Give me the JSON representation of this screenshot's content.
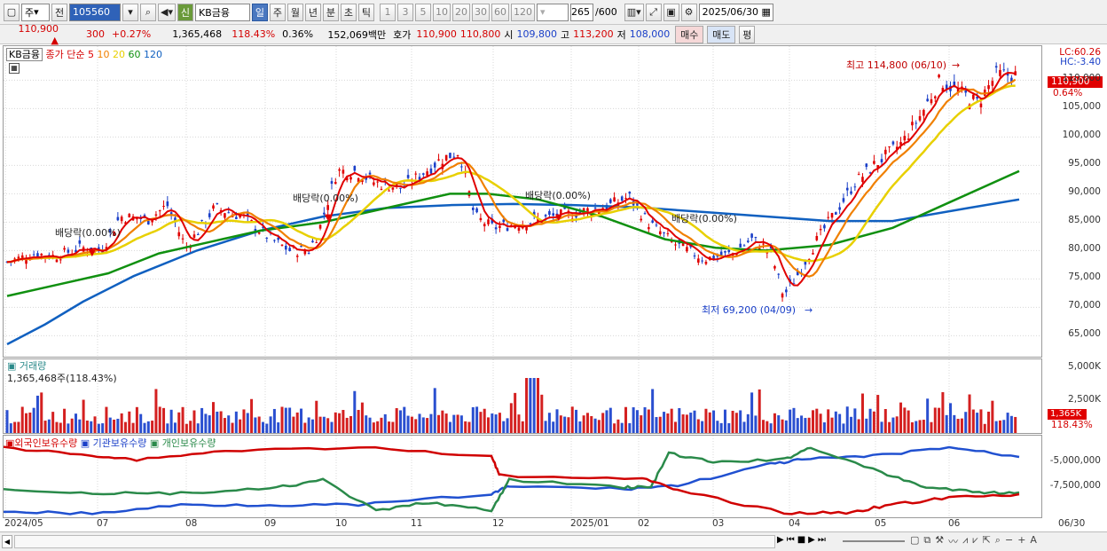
{
  "toolbar": {
    "mode": "주",
    "prev": "전",
    "code": "105560",
    "name": "KB금융",
    "credit": "신",
    "periods": [
      "일",
      "주",
      "월",
      "년",
      "분",
      "초",
      "틱"
    ],
    "intervals": [
      "1",
      "3",
      "5",
      "10",
      "20",
      "30",
      "60",
      "120"
    ],
    "count": "265",
    "count_max": "/600",
    "date": "2025/06/30"
  },
  "info": {
    "price": "110,900",
    "up_sign": "▲",
    "change": "300",
    "change_pct": "+0.27%",
    "volume": "1,365,468",
    "vol_ratio": "118.43%",
    "turnover_ratio": "0.36%",
    "amount": "152,069백만",
    "hoga_label": "호가",
    "bid": "110,900",
    "ask": "110,800",
    "open_label": "시",
    "open": "109,800",
    "high_label": "고",
    "high": "113,200",
    "low_label": "저",
    "low": "108,000",
    "buy": "매수",
    "sell": "매도",
    "eval": "평"
  },
  "price_panel": {
    "stock": "KB금융",
    "ma_label": "종가 단순",
    "ma_periods": [
      "5",
      "10",
      "20",
      "60",
      "120"
    ],
    "ma_colors": [
      "#e00000",
      "#f08000",
      "#e8d000",
      "#109010",
      "#1060c0"
    ],
    "lc": "LC:60.26",
    "hc": "HC:-3.40",
    "last": "110,900",
    "last_pct": "0.64%",
    "high_note": "최고 114,800 (06/10)",
    "low_note": "최저 69,200 (04/09)",
    "dividends": [
      "배당락(0.00%)",
      "배당락(0.00%)",
      "배당락(0.00%)",
      "배당락(0.00%)"
    ]
  },
  "volume_panel": {
    "title": "거래량",
    "value_label": "1,365,468주(118.43%)",
    "last": "1,365K",
    "last_pct": "118.43%",
    "ticks": [
      "5,000K",
      "2,500K"
    ]
  },
  "holding_panel": {
    "series": [
      "외국인보유수량",
      "기관보유수량",
      "개인보유수량"
    ],
    "ticks": [
      "-5,000,000",
      "-7,500,000"
    ]
  },
  "xaxis": {
    "labels": [
      "2024/05",
      "07",
      "08",
      "09",
      "10",
      "11",
      "12",
      "2025/01",
      "02",
      "03",
      "04",
      "05",
      "06",
      "06/30"
    ]
  },
  "chart_data": {
    "type": "candlestick",
    "title": "KB금융",
    "y_ticks": [
      110000,
      105000,
      100000,
      95000,
      90000,
      85000,
      80000,
      75000,
      70000,
      65000
    ],
    "ylim": [
      61000,
      116000
    ],
    "ma120": [
      [
        0,
        63500
      ],
      [
        30,
        67000
      ],
      [
        60,
        71000
      ],
      [
        100,
        75500
      ],
      [
        150,
        80000
      ],
      [
        200,
        83500
      ],
      [
        250,
        86000
      ],
      [
        300,
        87500
      ],
      [
        350,
        88000
      ],
      [
        400,
        88200
      ],
      [
        450,
        88000
      ],
      [
        500,
        87600
      ],
      [
        550,
        86800
      ],
      [
        600,
        86000
      ],
      [
        650,
        85200
      ],
      [
        700,
        85200
      ],
      [
        760,
        87500
      ],
      [
        800,
        89000
      ]
    ],
    "ma60": [
      [
        0,
        72000
      ],
      [
        40,
        74000
      ],
      [
        80,
        76000
      ],
      [
        120,
        79500
      ],
      [
        160,
        81500
      ],
      [
        200,
        83500
      ],
      [
        250,
        85000
      ],
      [
        300,
        87500
      ],
      [
        350,
        90000
      ],
      [
        380,
        90000
      ],
      [
        420,
        89000
      ],
      [
        470,
        86000
      ],
      [
        520,
        82000
      ],
      [
        560,
        80500
      ],
      [
        600,
        80000
      ],
      [
        650,
        81000
      ],
      [
        700,
        84000
      ],
      [
        740,
        88000
      ],
      [
        800,
        94000
      ]
    ],
    "markers": {
      "high": 114800,
      "low": 69200
    }
  }
}
